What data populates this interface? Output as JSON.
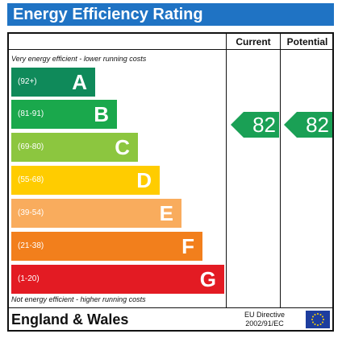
{
  "title": "Energy Efficiency Rating",
  "columns": {
    "current": "Current",
    "potential": "Potential"
  },
  "notes": {
    "top": "Very energy efficient - lower running costs",
    "bottom": "Not energy efficient - higher running costs"
  },
  "bands": [
    {
      "range": "(92+)",
      "letter": "A",
      "color": "#0f8a5a"
    },
    {
      "range": "(81-91)",
      "letter": "B",
      "color": "#1aa84c"
    },
    {
      "range": "(69-80)",
      "letter": "C",
      "color": "#8cc63f"
    },
    {
      "range": "(55-68)",
      "letter": "D",
      "color": "#ffcc00"
    },
    {
      "range": "(39-54)",
      "letter": "E",
      "color": "#f9ac5d"
    },
    {
      "range": "(21-38)",
      "letter": "F",
      "color": "#f27f1c"
    },
    {
      "range": "(1-20)",
      "letter": "G",
      "color": "#e31b23"
    }
  ],
  "ratings": {
    "current": "82",
    "potential": "82",
    "color": "#1aa055"
  },
  "footer": {
    "region": "England & Wales",
    "directive_line1": "EU Directive",
    "directive_line2": "2002/91/EC"
  },
  "icons": {
    "flag": "eu-flag-icon"
  }
}
